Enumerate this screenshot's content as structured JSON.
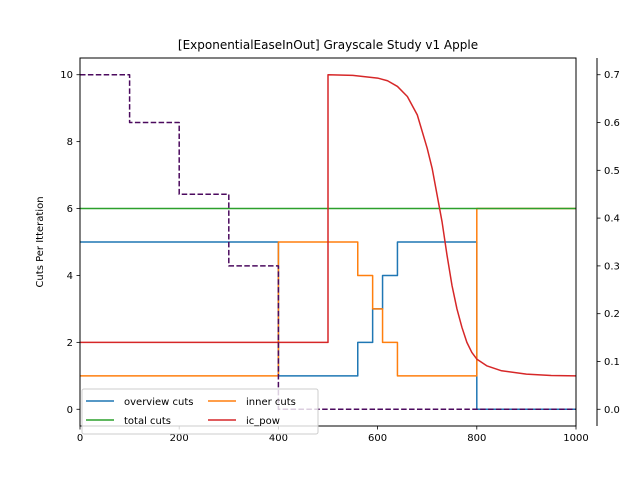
{
  "chart_data": {
    "type": "line",
    "title": "[ExponentialEaseInOut] Grayscale Study v1 Apple",
    "xlabel": "",
    "ylabel": "Cuts Per Itteration",
    "xlim": [
      0,
      1000
    ],
    "ylim": [
      -0.5,
      10.5
    ],
    "y2lim": [
      -0.035,
      0.735
    ],
    "x_ticks": [
      0,
      200,
      400,
      600,
      800,
      1000
    ],
    "y_ticks": [
      0,
      2,
      4,
      6,
      8,
      10
    ],
    "y2_ticks": [
      0.0,
      0.1,
      0.2,
      0.3,
      0.4,
      0.5,
      0.6,
      0.7
    ],
    "grid": false,
    "legend_position": "lower-left",
    "series": [
      {
        "name": "overview cuts",
        "color": "#1f77b4",
        "axis": "left",
        "style": "solid",
        "x": [
          0,
          400,
          400,
          560,
          560,
          590,
          590,
          610,
          610,
          640,
          640,
          800,
          800,
          1000
        ],
        "y": [
          5,
          5,
          1,
          1,
          2,
          2,
          3,
          3,
          4,
          4,
          5,
          5,
          0,
          0
        ]
      },
      {
        "name": "inner cuts",
        "color": "#ff7f0e",
        "axis": "left",
        "style": "solid",
        "x": [
          0,
          400,
          400,
          560,
          560,
          590,
          590,
          610,
          610,
          640,
          640,
          800,
          800,
          1000
        ],
        "y": [
          1,
          1,
          5,
          5,
          4,
          4,
          3,
          3,
          2,
          2,
          1,
          1,
          6,
          6
        ]
      },
      {
        "name": "total cuts",
        "color": "#2ca02c",
        "axis": "left",
        "style": "solid",
        "x": [
          0,
          1000
        ],
        "y": [
          6,
          6
        ]
      },
      {
        "name": "ic_pow",
        "color": "#d62728",
        "axis": "left",
        "style": "solid",
        "x": [
          0,
          500,
          500,
          550,
          600,
          620,
          640,
          660,
          680,
          700,
          710,
          720,
          730,
          740,
          750,
          760,
          770,
          780,
          790,
          800,
          820,
          850,
          900,
          950,
          1000
        ],
        "y": [
          2,
          2,
          10,
          9.98,
          9.9,
          9.82,
          9.65,
          9.35,
          8.8,
          7.8,
          7.2,
          6.4,
          5.6,
          4.6,
          3.7,
          3.0,
          2.45,
          2.0,
          1.7,
          1.5,
          1.3,
          1.15,
          1.05,
          1.01,
          1.0
        ]
      },
      {
        "name": "",
        "color": "#4b0a5e",
        "axis": "right",
        "style": "dashed",
        "x": [
          0,
          100,
          100,
          200,
          200,
          300,
          300,
          400,
          400,
          1000
        ],
        "y": [
          0.7,
          0.7,
          0.6,
          0.6,
          0.45,
          0.45,
          0.3,
          0.3,
          0.0,
          0.0
        ]
      }
    ]
  }
}
